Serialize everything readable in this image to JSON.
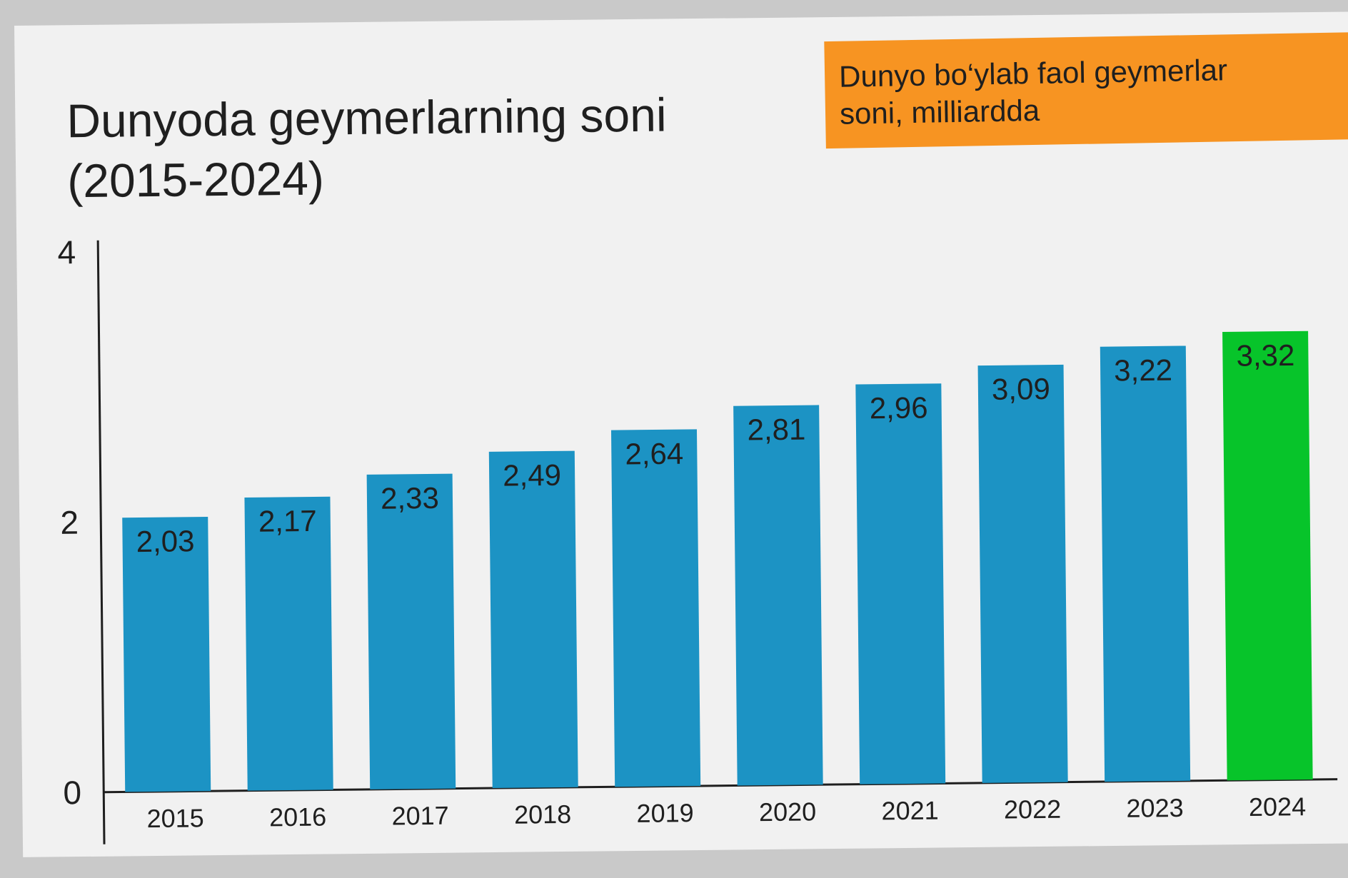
{
  "title": "Dunyoda geymerlarning soni\n(2015-2024)",
  "subtitle": "Dunyo bo‘ylab faol geymerlar\nsoni, milliardda",
  "colors": {
    "bar": "#1c93c4",
    "highlight": "#07c42a",
    "subtitle_box": "#f79422",
    "background": "#f1f1f1"
  },
  "chart_data": {
    "type": "bar",
    "title": "Dunyoda geymerlarning soni\n(2015-2024)",
    "subtitle": "Dunyo bo‘ylab faol geymerlar\nsoni, milliardda",
    "xlabel": "",
    "ylabel": "",
    "categories": [
      "2015",
      "2016",
      "2017",
      "2018",
      "2019",
      "2020",
      "2021",
      "2022",
      "2023",
      "2024"
    ],
    "values": [
      2.03,
      2.17,
      2.33,
      2.49,
      2.64,
      2.81,
      2.96,
      3.09,
      3.22,
      3.32
    ],
    "value_labels": [
      "2,03",
      "2,17",
      "2,33",
      "2,49",
      "2,64",
      "2,81",
      "2,96",
      "3,09",
      "3,22",
      "3,32"
    ],
    "highlight_category": "2024",
    "ylim": [
      0,
      4
    ],
    "yticks": [
      0,
      2,
      4
    ],
    "ytick_labels": [
      "0",
      "2",
      "4"
    ],
    "grid": false,
    "legend": false
  }
}
